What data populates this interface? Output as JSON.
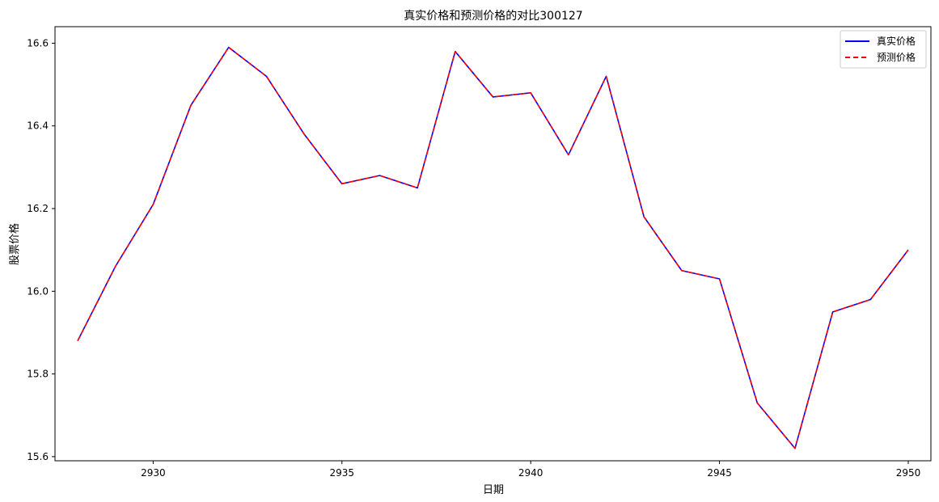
{
  "chart_data": {
    "type": "line",
    "title": "真实价格和预测价格的对比300127",
    "xlabel": "日期",
    "ylabel": "股票价格",
    "xlim": [
      2927.4,
      2950.6
    ],
    "ylim": [
      15.59,
      16.64
    ],
    "x_ticks": [
      2930,
      2935,
      2940,
      2945,
      2950
    ],
    "y_ticks": [
      15.6,
      15.8,
      16.0,
      16.2,
      16.4,
      16.6
    ],
    "x": [
      2928,
      2929,
      2930,
      2931,
      2932,
      2933,
      2934,
      2935,
      2936,
      2937,
      2938,
      2939,
      2940,
      2941,
      2942,
      2943,
      2944,
      2945,
      2946,
      2947,
      2948,
      2949,
      2950
    ],
    "series": [
      {
        "name": "真实价格",
        "color": "#0000ff",
        "style": "solid",
        "values": [
          15.88,
          16.06,
          16.21,
          16.45,
          16.59,
          16.52,
          16.38,
          16.26,
          16.28,
          16.25,
          16.58,
          16.47,
          16.48,
          16.33,
          16.52,
          16.18,
          16.05,
          16.03,
          15.73,
          15.62,
          15.95,
          15.98,
          16.1
        ]
      },
      {
        "name": "预测价格",
        "color": "#ff0000",
        "style": "dashed",
        "values": [
          15.88,
          16.06,
          16.21,
          16.45,
          16.59,
          16.52,
          16.38,
          16.26,
          16.28,
          16.25,
          16.58,
          16.47,
          16.48,
          16.33,
          16.52,
          16.18,
          16.05,
          16.03,
          15.73,
          15.62,
          15.95,
          15.98,
          16.1
        ]
      }
    ],
    "grid": false,
    "legend_position": "top-right"
  }
}
